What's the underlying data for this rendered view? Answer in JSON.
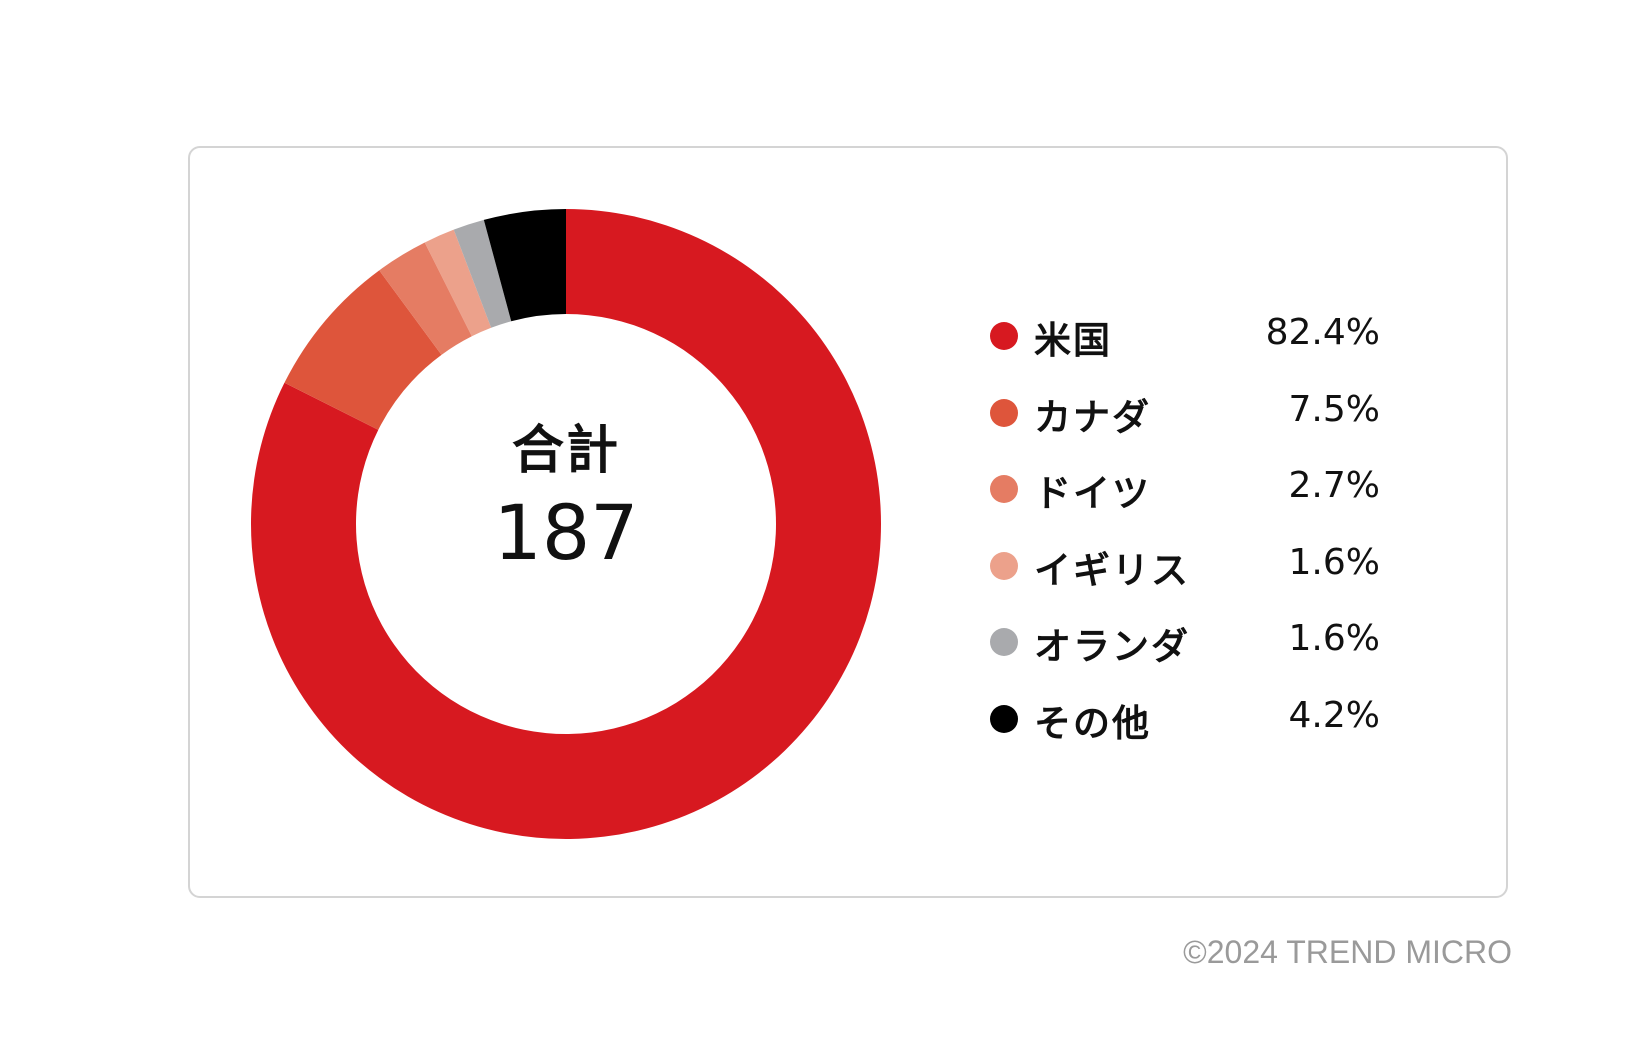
{
  "chart_data": {
    "type": "pie",
    "center_title": "合計",
    "center_value": "187",
    "series": [
      {
        "name": "米国",
        "value": 82.4,
        "label": "82.4%",
        "color": "#d71920"
      },
      {
        "name": "カナダ",
        "value": 7.5,
        "label": "7.5%",
        "color": "#de553b"
      },
      {
        "name": "ドイツ",
        "value": 2.7,
        "label": "2.7%",
        "color": "#e57c63"
      },
      {
        "name": "イギリス",
        "value": 1.6,
        "label": "1.6%",
        "color": "#eca18b"
      },
      {
        "name": "オランダ",
        "value": 1.6,
        "label": "1.6%",
        "color": "#a9aaad"
      },
      {
        "name": "その他",
        "value": 4.2,
        "label": "4.2%",
        "color": "#000000"
      }
    ],
    "legend_position": "right"
  },
  "footer": {
    "copyright": "©2024 TREND MICRO"
  }
}
